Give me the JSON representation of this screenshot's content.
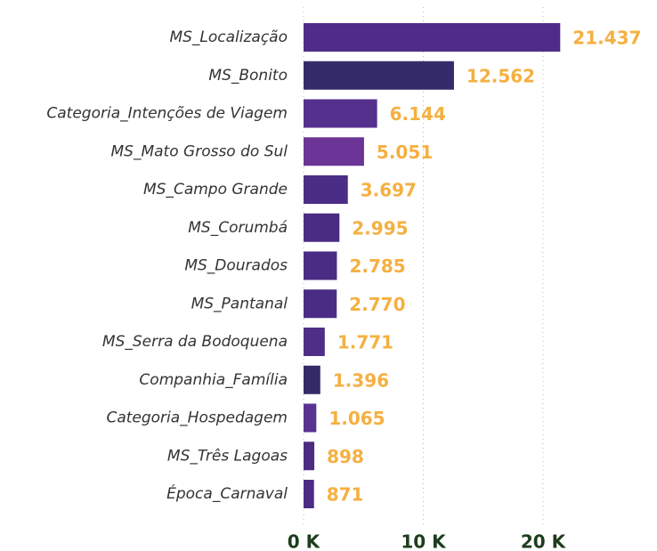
{
  "chart_data": {
    "type": "barh",
    "categories": [
      "MS_Localização",
      "MS_Bonito",
      "Categoria_Intenções de Viagem",
      "MS_Mato Grosso do Sul",
      "MS_Campo Grande",
      "MS_Corumbá",
      "MS_Dourados",
      "MS_Pantanal",
      "MS_Serra da Bodoquena",
      "Companhia_Família",
      "Categoria_Hospedagem",
      "MS_Três Lagoas",
      "Época_Carnaval"
    ],
    "values": [
      21437,
      12562,
      6144,
      5051,
      3697,
      2995,
      2785,
      2770,
      1771,
      1396,
      1065,
      898,
      871
    ],
    "value_labels": [
      "21.437",
      "12.562",
      "6.144",
      "5.051",
      "3.697",
      "2.995",
      "2.785",
      "2.770",
      "1.771",
      "1.396",
      "1.065",
      "898",
      "871"
    ],
    "colors": [
      "#4f2c87",
      "#352b6b",
      "#55308d",
      "#6b3597",
      "#4c2d85",
      "#4a2c83",
      "#4b2c84",
      "#4b2c84",
      "#4f2e88",
      "#332a66",
      "#5a3290",
      "#4a2c83",
      "#4b2c84"
    ],
    "label_color": "#f5b041",
    "xlim": [
      0,
      29000
    ],
    "xticks": [
      {
        "value": 0,
        "label": "0 K"
      },
      {
        "value": 10000,
        "label": "10 K"
      },
      {
        "value": 20000,
        "label": "20 K"
      }
    ],
    "grid": true
  }
}
